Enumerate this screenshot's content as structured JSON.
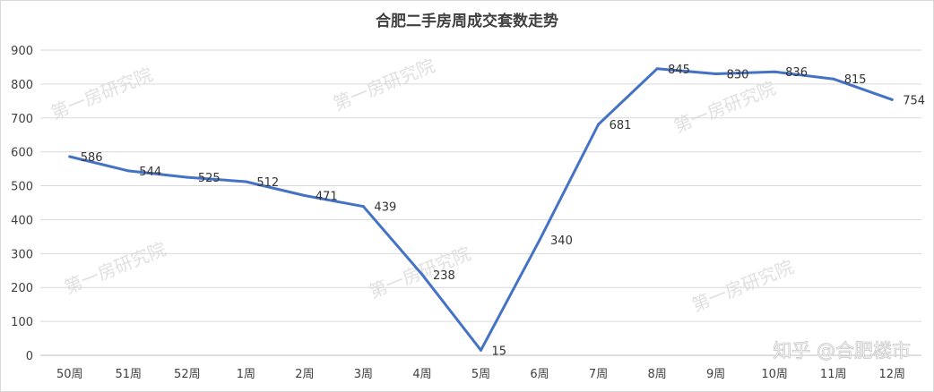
{
  "chart_data": {
    "type": "line",
    "title": "合肥二手房周成交套数走势",
    "xlabel": "",
    "ylabel": "",
    "categories": [
      "50周",
      "51周",
      "52周",
      "1周",
      "2周",
      "3周",
      "4周",
      "5周",
      "6周",
      "7周",
      "8周",
      "9周",
      "10周",
      "11周",
      "12周"
    ],
    "series": [
      {
        "values": [
          586,
          544,
          525,
          512,
          471,
          439,
          238,
          15,
          340,
          681,
          845,
          830,
          836,
          815,
          754
        ]
      }
    ],
    "ylim": [
      0,
      900
    ],
    "yticks": [
      0,
      100,
      200,
      300,
      400,
      500,
      600,
      700,
      800,
      900
    ],
    "grid": true,
    "legend": "none",
    "line_color": "#4472c4"
  },
  "watermark_text": "第一房研究院",
  "credit_text": "知乎 @合肥楼市"
}
